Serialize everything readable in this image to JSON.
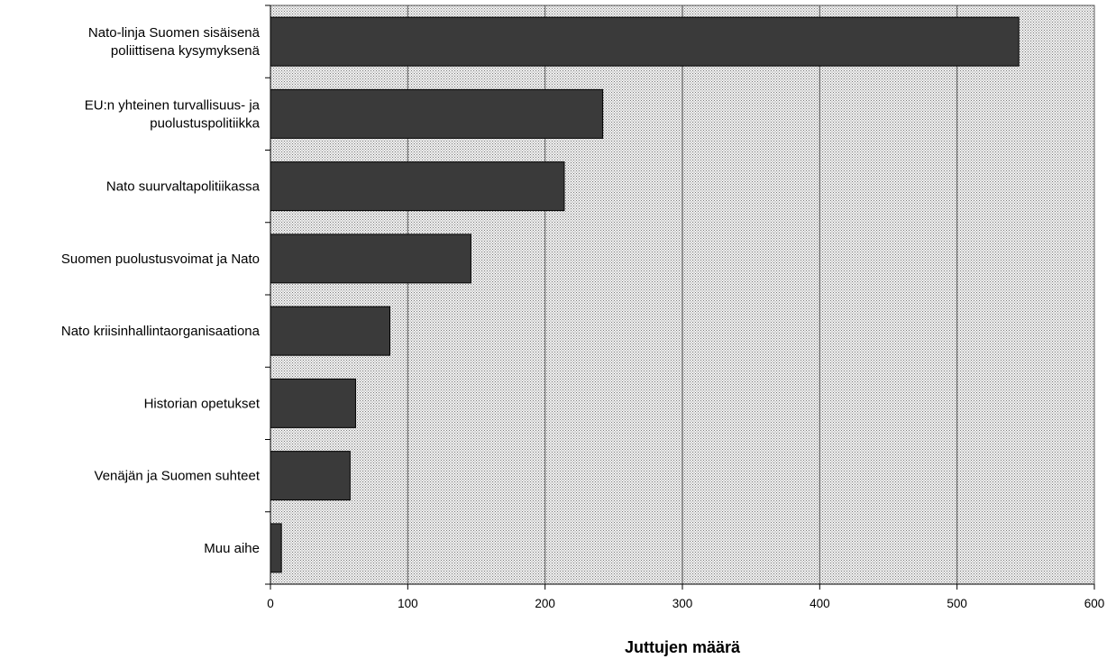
{
  "chart_data": {
    "type": "bar",
    "orientation": "horizontal",
    "categories": [
      "Nato-linja Suomen sisäisenä poliittisena kysymyksenä",
      "EU:n yhteinen turvallisuus- ja puolustuspolitiikka",
      "Nato suurvaltapolitiikassa",
      "Suomen puolustusvoimat ja Nato",
      "Nato kriisinhallintaorganisaationa",
      "Historian opetukset",
      "Venäjän ja Suomen suhteet",
      "Muu aihe"
    ],
    "category_label_lines": [
      [
        "Nato-linja Suomen sisäisenä",
        "poliittisena kysymyksenä"
      ],
      [
        "EU:n yhteinen turvallisuus- ja",
        "puolustuspolitiikka"
      ],
      [
        "Nato suurvaltapolitiikassa"
      ],
      [
        "Suomen puolustusvoimat ja Nato"
      ],
      [
        "Nato kriisinhallintaorganisaationa"
      ],
      [
        "Historian opetukset"
      ],
      [
        "Venäjän ja Suomen suhteet"
      ],
      [
        "Muu aihe"
      ]
    ],
    "values": [
      545,
      242,
      214,
      146,
      87,
      62,
      58,
      8
    ],
    "title": "",
    "xlabel": "Juttujen määrä",
    "ylabel": "",
    "xlim": [
      0,
      600
    ],
    "xticks": [
      0,
      100,
      200,
      300,
      400,
      500,
      600
    ],
    "grid": "vertical",
    "legend": "none",
    "colors": {
      "bar_fill": "#3a3a3a",
      "bar_stroke": "#000000",
      "plot_background": "#c8c8c8",
      "gridline": "#555555"
    }
  }
}
